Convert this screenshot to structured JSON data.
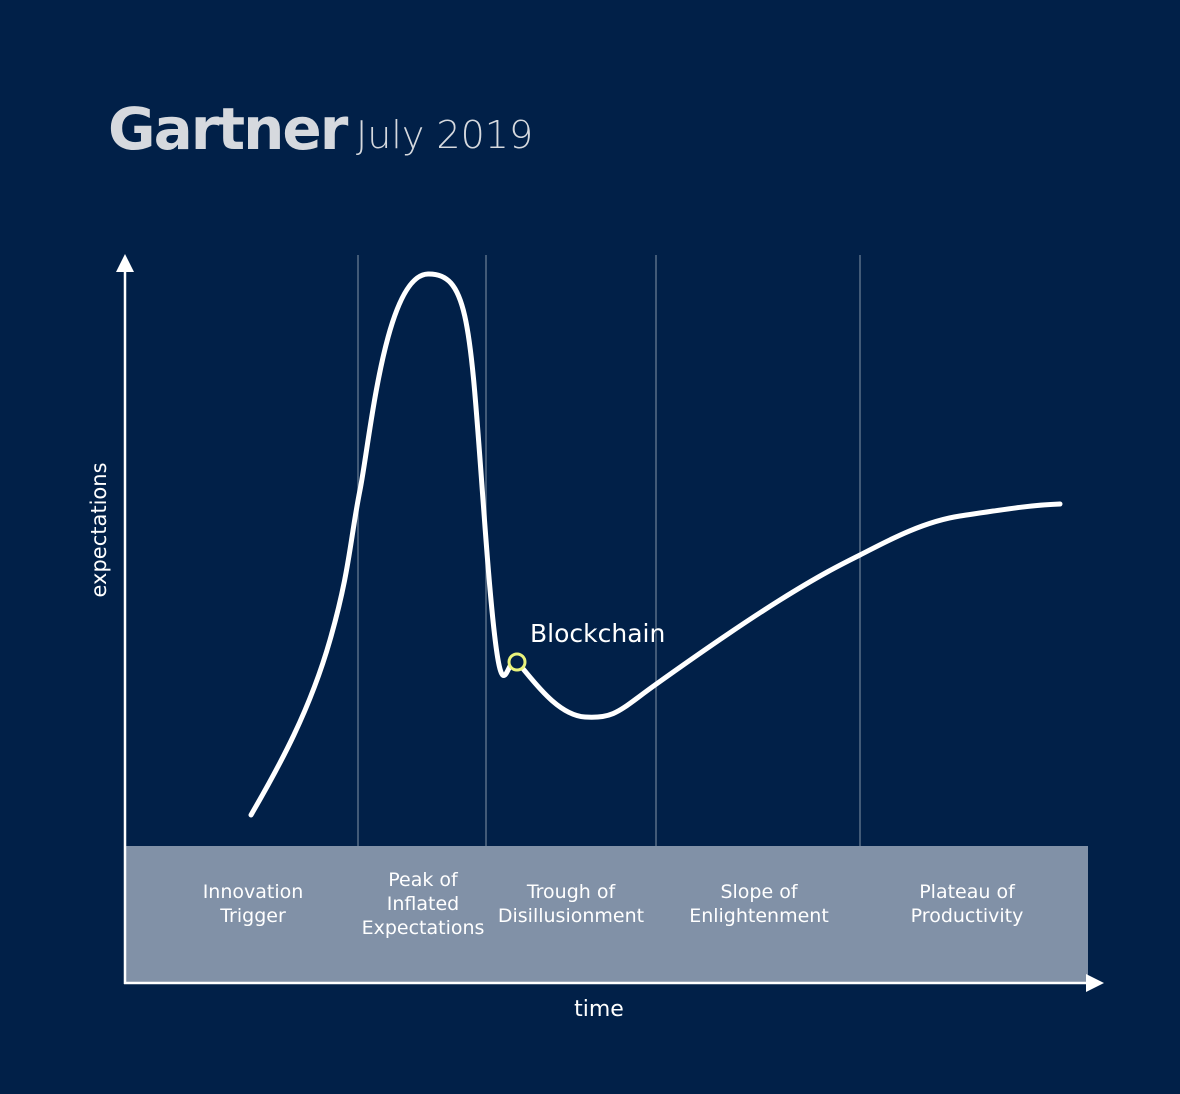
{
  "header": {
    "brand": "Gartner",
    "date": "July 2019"
  },
  "axes": {
    "y_label": "expectations",
    "x_label": "time"
  },
  "annotation": "Blockchain",
  "phases": [
    [
      "Innovation",
      "Trigger"
    ],
    [
      "Peak of",
      "Inflated",
      "Expectations"
    ],
    [
      "Trough of",
      "Disillusionment"
    ],
    [
      "Slope of",
      "Enlightenment"
    ],
    [
      "Plateau of",
      "Productivity"
    ]
  ]
}
